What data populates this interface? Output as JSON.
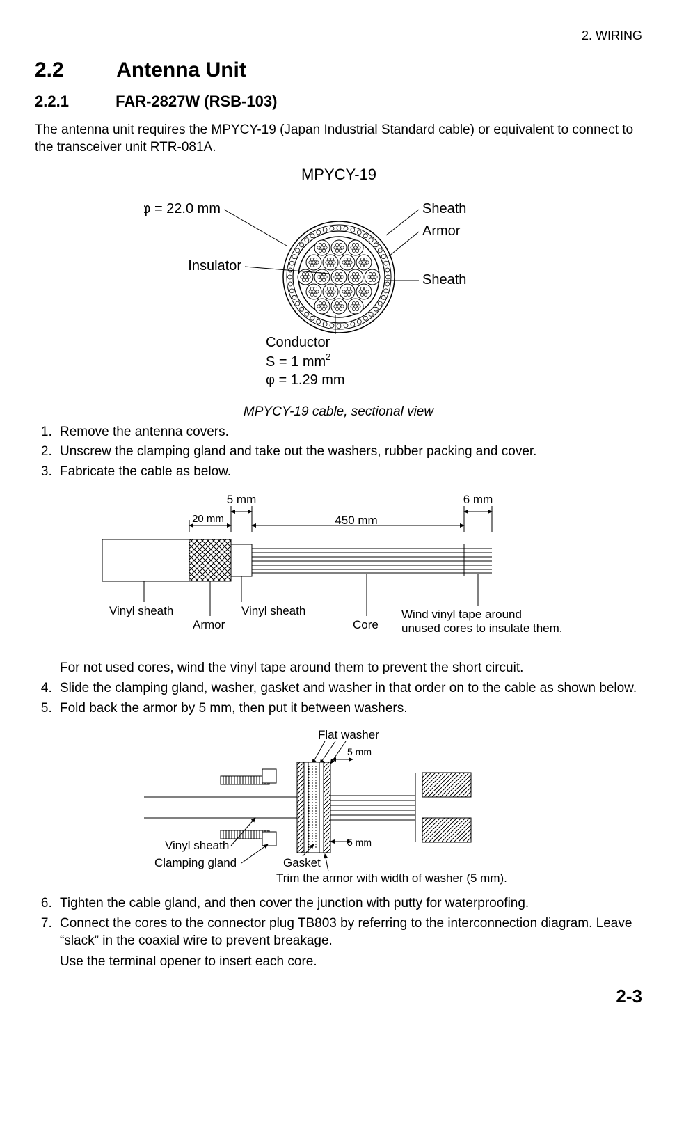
{
  "header": {
    "chapter": "2.  WIRING"
  },
  "section": {
    "num": "2.2",
    "title": "Antenna Unit",
    "sub_num": "2.2.1",
    "sub_title": "FAR-2827W (RSB-103)"
  },
  "intro": "The antenna unit requires the MPYCY-19 (Japan Industrial Standard cable) or equivalent to connect to the transceiver unit RTR-081A.",
  "figure1": {
    "title": "MPYCY-19",
    "phi_label": "φ = 22.0 mm",
    "label_sheath_top": "Sheath",
    "label_armor": "Armor",
    "label_sheath_bot": "Sheath",
    "label_insulator": "Insulator",
    "label_conductor": "Conductor",
    "cond_s": "S = 1 mm",
    "cond_s_sup": "2",
    "cond_phi": "φ = 1.29 mm",
    "caption": "MPYCY-19 cable, sectional view",
    "colors": {
      "stroke": "#000000",
      "fill_bg": "#ffffff",
      "text": "#000000"
    }
  },
  "steps_a": {
    "s1": "Remove the antenna covers.",
    "s2": "Unscrew the clamping gland and take out the washers, rubber packing and cover.",
    "s3": "Fabricate the cable as below."
  },
  "figure2": {
    "d_5mm": "5 mm",
    "d_6mm": "6 mm",
    "d_20mm": "20 mm",
    "d_450mm": "450 mm",
    "l_vinyl_sheath_left": "Vinyl sheath",
    "l_armor": "Armor",
    "l_vinyl_sheath_mid": "Vinyl sheath",
    "l_core": "Core",
    "note1": "Wind vinyl tape around",
    "note2": "unused cores to insulate them."
  },
  "mid_note": "For not used cores, wind the vinyl tape around them to prevent the short circuit.",
  "steps_b": {
    "s4": "Slide the clamping gland, washer, gasket and washer in that order on to the cable as shown below.",
    "s5": "Fold back the armor by 5 mm, then put it between washers."
  },
  "figure3": {
    "l_flat_washer": "Flat washer",
    "l_5mm_top": "5 mm",
    "l_5mm_bot": "5 mm",
    "l_vinyl_sheath": "Vinyl sheath",
    "l_clamping_gland": "Clamping gland",
    "l_gasket": "Gasket",
    "note": "Trim the armor with width of washer (5 mm)."
  },
  "steps_c": {
    "s6": "Tighten the cable gland, and then cover the junction with putty for waterproofing.",
    "s7": "Connect the cores to the connector plug TB803 by referring to the interconnection diagram. Leave “slack” in the coaxial wire to prevent breakage."
  },
  "tail_note": "Use the terminal opener to insert each core.",
  "footer": {
    "page": "2-3"
  }
}
